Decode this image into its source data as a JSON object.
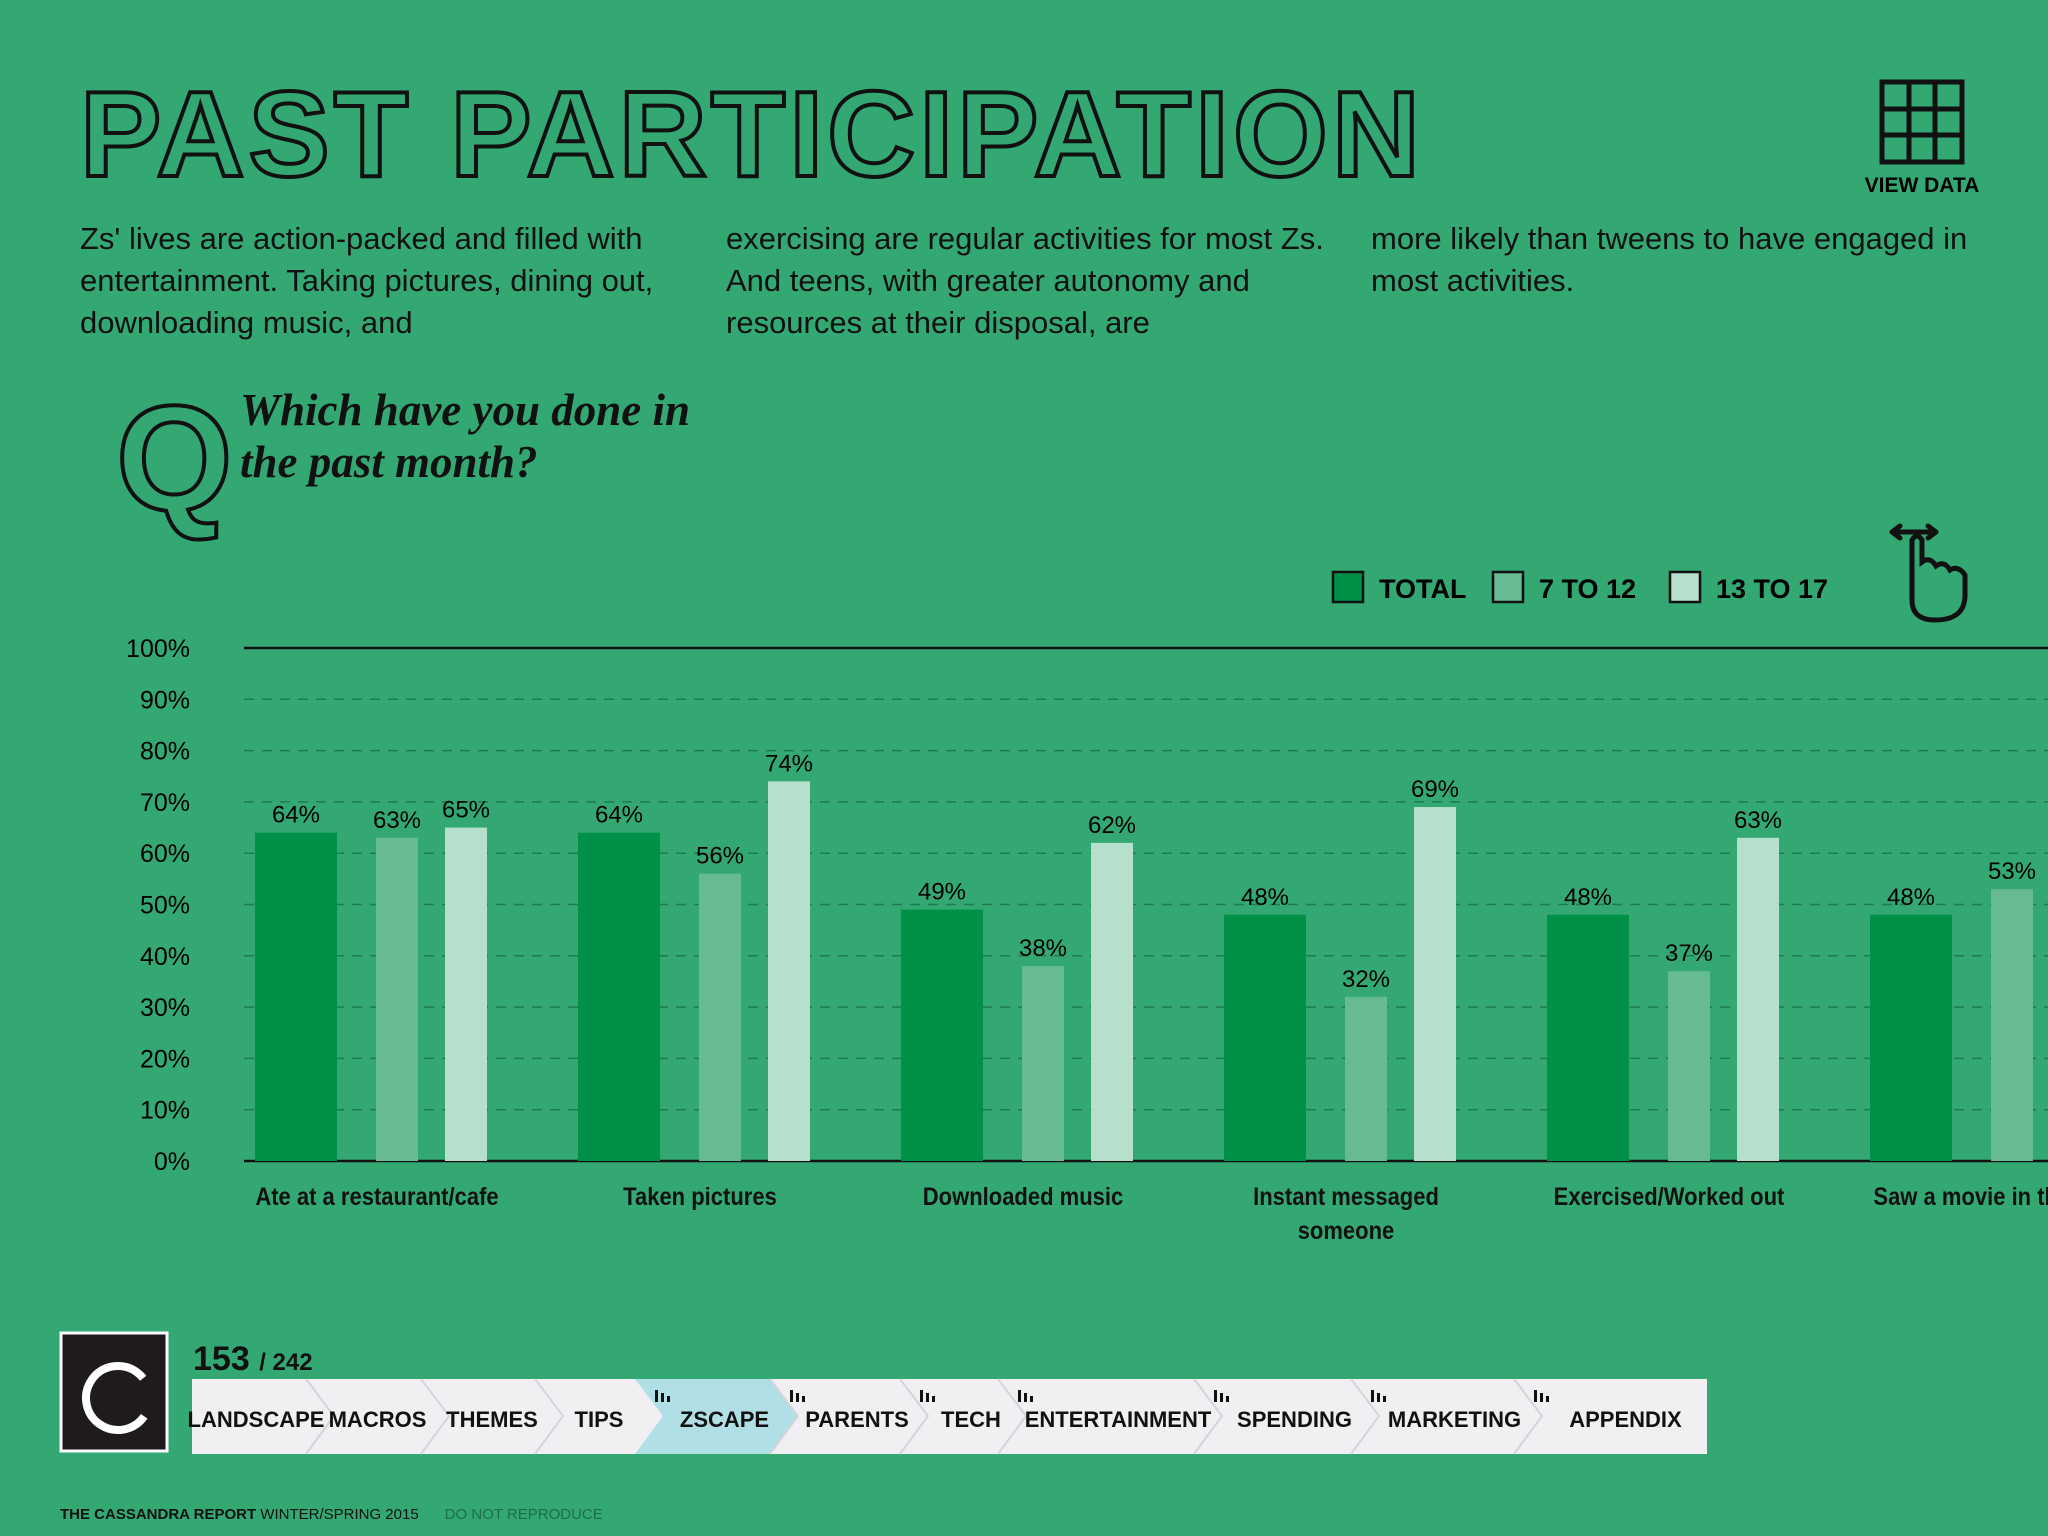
{
  "header": {
    "title": "PAST PARTICIPATION",
    "view_data": "VIEW DATA"
  },
  "intro": [
    "Zs' lives are action-packed and filled with entertainment. Taking pictures, dining out, downloading music, and",
    "exercising are regular activities for most Zs. And teens, with greater autonomy and resources at their disposal, are",
    "more likely than tweens to have engaged in most activities."
  ],
  "question": {
    "letter": "Q",
    "text": "Which have you done in the past month?"
  },
  "chart_data": {
    "type": "bar",
    "categories": [
      "Ate at a restaurant/cafe",
      "Taken pictures",
      "Downloaded music",
      "Instant messaged someone",
      "Exercised/Worked out",
      "Saw a movie in theatre"
    ],
    "series": [
      {
        "name": "TOTAL",
        "color": "#009048",
        "values": [
          64,
          64,
          49,
          48,
          48,
          48
        ],
        "value_labels": [
          "64%",
          "64%",
          "49%",
          "48%",
          "48%",
          "48%"
        ]
      },
      {
        "name": "7 TO 12",
        "color": "#66bb93",
        "values": [
          63,
          56,
          38,
          32,
          37,
          53
        ],
        "value_labels": [
          "63%",
          "56%",
          "38%",
          "32%",
          "37%",
          "53%"
        ]
      },
      {
        "name": "13 TO 17",
        "color": "#b5e0cb",
        "values": [
          65,
          74,
          62,
          69,
          63,
          null
        ],
        "value_labels": [
          "65%",
          "74%",
          "62%",
          "69%",
          "63%",
          null
        ]
      }
    ],
    "ylim": [
      0,
      100
    ],
    "yticks": [
      {
        "value": 0,
        "label": "0%"
      },
      {
        "value": 10,
        "label": "10%"
      },
      {
        "value": 20,
        "label": "20%"
      },
      {
        "value": 30,
        "label": "30%"
      },
      {
        "value": 40,
        "label": "40%"
      },
      {
        "value": 50,
        "label": "50%"
      },
      {
        "value": 60,
        "label": "60%"
      },
      {
        "value": 70,
        "label": "70%"
      },
      {
        "value": 80,
        "label": "80%"
      },
      {
        "value": 90,
        "label": "90%"
      },
      {
        "value": 100,
        "label": "100%"
      }
    ],
    "grid": true
  },
  "nav": {
    "page": "153",
    "of": "/ 242",
    "sections": [
      "LANDSCAPE",
      "MACROS",
      "THEMES",
      "TIPS",
      "ZSCAPE",
      "PARENTS",
      "TECH",
      "ENTERTAINMENT",
      "SPENDING",
      "MARKETING",
      "APPENDIX"
    ],
    "active": 4
  },
  "footer": {
    "publication": "THE CASSANDRA REPORT",
    "edition": "WINTER/SPRING 2015",
    "notice": "DO NOT REPRODUCE"
  }
}
